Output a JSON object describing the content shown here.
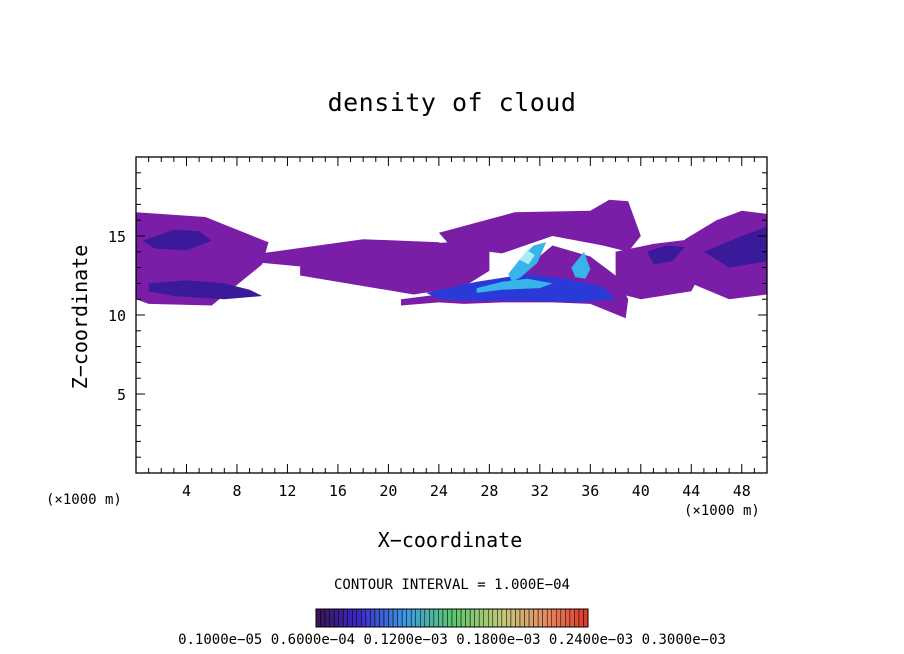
{
  "chart_data": {
    "type": "heatmap",
    "title": "density of cloud",
    "xlabel": "X−coordinate",
    "ylabel": "Z−coordinate",
    "x_unit_left": "(×1000 m)",
    "x_unit_right": "(×1000 m)",
    "xlim": [
      0,
      50
    ],
    "ylim": [
      0,
      20
    ],
    "x_ticks": [
      4,
      8,
      12,
      16,
      20,
      24,
      28,
      32,
      36,
      40,
      44,
      48
    ],
    "y_ticks": [
      5,
      10,
      15
    ],
    "contour_interval": "CONTOUR INTERVAL = 1.000E−04",
    "colorbar_labels": "0.1000e−05 0.6000e−04 0.1200e−03 0.1800e−03 0.2400e−03 0.3000e−03",
    "colors": {
      "background_field": "#7a1ea8",
      "low": "#3a1a9a",
      "mid": "#2a3ad8",
      "high": "#38b4e8",
      "peak": "#a8ecf8"
    },
    "regions": [
      {
        "x": [
          0,
          5.5,
          10.5,
          10,
          6,
          1,
          0
        ],
        "z": [
          16.5,
          16.2,
          14.6,
          13.2,
          10.6,
          10.7,
          11.0
        ],
        "level": "background"
      },
      {
        "x": [
          9,
          18,
          24,
          26,
          28,
          22,
          14,
          10
        ],
        "z": [
          13.8,
          14.8,
          14.6,
          13.5,
          13.0,
          12.3,
          13.0,
          13.3
        ],
        "level": "background"
      },
      {
        "x": [
          13,
          22,
          26,
          28,
          28,
          18,
          13
        ],
        "z": [
          12.5,
          11.3,
          11.8,
          12.8,
          14.8,
          14.2,
          13.2
        ],
        "level": "background"
      },
      {
        "x": [
          24,
          30,
          36,
          37.5,
          39,
          40,
          39,
          37,
          33,
          29,
          25
        ],
        "z": [
          15.2,
          16.5,
          16.6,
          17.3,
          17.2,
          15.0,
          14.0,
          14.4,
          15.0,
          13.9,
          14.3
        ],
        "level": "background"
      },
      {
        "x": [
          21,
          26,
          30,
          33,
          36,
          38,
          39,
          38.8,
          36,
          33,
          29,
          26,
          24,
          21
        ],
        "z": [
          11.0,
          11.5,
          12.4,
          14.4,
          13.7,
          12.5,
          11.0,
          9.8,
          10.7,
          10.8,
          10.8,
          10.7,
          10.8,
          10.6
        ],
        "level": "background"
      },
      {
        "x": [
          38,
          41,
          44,
          45,
          44,
          40,
          38
        ],
        "z": [
          14.0,
          14.5,
          14.8,
          13.0,
          11.5,
          11.0,
          11.4
        ],
        "level": "background"
      },
      {
        "x": [
          43.5,
          46,
          48,
          50,
          50,
          47,
          44,
          43.5
        ],
        "z": [
          14.8,
          16.0,
          16.6,
          16.4,
          11.3,
          11.0,
          12.0,
          13.5
        ],
        "level": "background"
      },
      {
        "x": [
          1,
          4,
          7,
          9,
          10,
          7,
          3,
          1
        ],
        "z": [
          12.0,
          12.2,
          12.0,
          11.6,
          11.2,
          11.0,
          11.2,
          11.5
        ],
        "level": "low"
      },
      {
        "x": [
          0.5,
          3,
          5,
          6,
          4,
          1.5
        ],
        "z": [
          14.7,
          15.4,
          15.3,
          14.7,
          14.1,
          14.2
        ],
        "level": "low"
      },
      {
        "x": [
          23,
          27,
          31,
          34,
          37,
          38,
          35,
          31,
          27,
          24
        ],
        "z": [
          11.4,
          12.1,
          12.6,
          12.3,
          11.8,
          11.0,
          10.8,
          10.9,
          10.9,
          11.0
        ],
        "level": "mid"
      },
      {
        "x": [
          45,
          48,
          50,
          50,
          47
        ],
        "z": [
          14.0,
          15.0,
          15.6,
          13.4,
          13.0
        ],
        "level": "low"
      },
      {
        "x": [
          40.5,
          42,
          43.5,
          42.5,
          41
        ],
        "z": [
          14.0,
          14.4,
          14.3,
          13.4,
          13.2
        ],
        "level": "low"
      },
      {
        "x": [
          29.5,
          30.5,
          31.5,
          32.5,
          31.8,
          30.5,
          29.8
        ],
        "z": [
          12.6,
          13.6,
          14.4,
          14.6,
          13.3,
          12.4,
          12.1
        ],
        "level": "high"
      },
      {
        "x": [
          34.5,
          35.5,
          36.0,
          35.6,
          34.8
        ],
        "z": [
          13.0,
          14.0,
          12.9,
          12.3,
          12.4
        ],
        "level": "high"
      },
      {
        "x": [
          27,
          29,
          31,
          33,
          32,
          29,
          27
        ],
        "z": [
          11.7,
          12.1,
          12.3,
          12.0,
          11.7,
          11.6,
          11.4
        ],
        "level": "high"
      },
      {
        "x": [
          30.4,
          31.0,
          31.6,
          31.1
        ],
        "z": [
          13.5,
          14.1,
          13.8,
          13.2
        ],
        "level": "peak"
      }
    ]
  }
}
